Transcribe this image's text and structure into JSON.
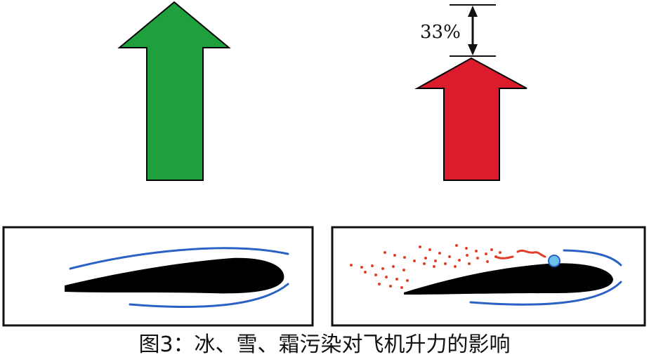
{
  "caption": "图3：冰、雪、霜污染对飞机升力的影响",
  "lift_reduction_label": "33%",
  "colors": {
    "clean_lift_arrow": "#1fa03c",
    "iced_lift_arrow": "#dc1c2c",
    "airflow": "#2a62c4",
    "ice_particles": "#e0402a",
    "ice_droplet": "#6ec0ec",
    "airfoil": "#000000"
  },
  "panels": [
    {
      "name": "clean-wing",
      "contamination": false
    },
    {
      "name": "contaminated-wing",
      "contamination": true
    }
  ]
}
